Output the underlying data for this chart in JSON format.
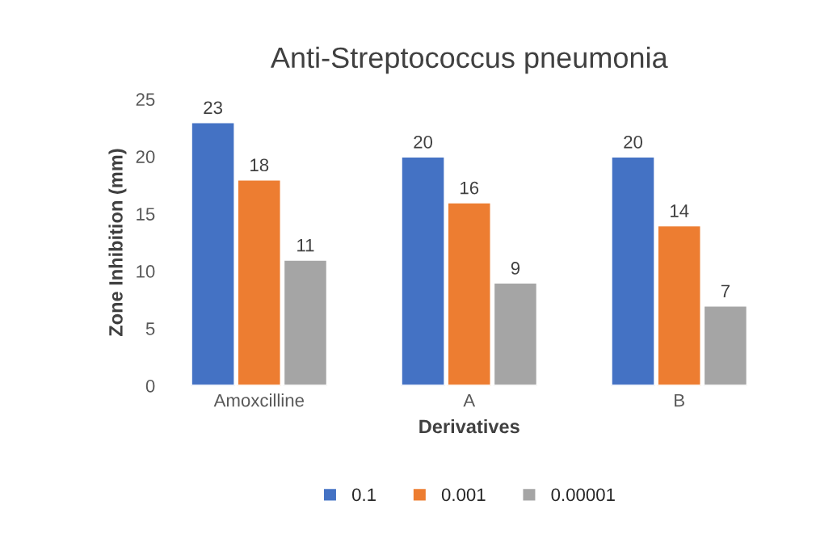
{
  "chart_data": {
    "type": "bar",
    "title": "Anti-Streptococcus pneumonia",
    "xlabel": "Derivatives",
    "ylabel": "Zone Inhibition (mm)",
    "categories": [
      "Amoxcilline",
      "A",
      "B"
    ],
    "series": [
      {
        "name": "0.1",
        "color": "#4472c4",
        "values": [
          23,
          20,
          20
        ]
      },
      {
        "name": "0.001",
        "color": "#ed7d31",
        "values": [
          18,
          16,
          14
        ]
      },
      {
        "name": "0.00001",
        "color": "#a5a5a5",
        "values": [
          11,
          9,
          7
        ]
      }
    ],
    "ylim": [
      0,
      25
    ],
    "yticks": [
      0,
      5,
      10,
      15,
      20,
      25
    ],
    "grid": false,
    "legend": "bottom",
    "data_labels": true
  }
}
